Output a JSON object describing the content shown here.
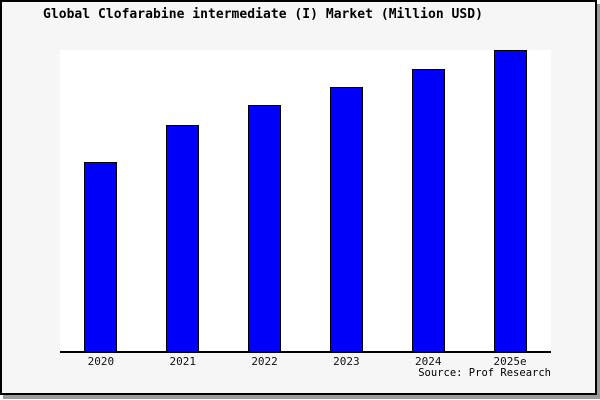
{
  "figure": {
    "background_color": "#f6f6f6",
    "border_color": "#000000",
    "shadow_color": "#9b9b9b"
  },
  "chart_data": {
    "type": "bar",
    "title": "Global Clofarabine intermediate (I) Market (Million USD)",
    "categories": [
      "2020",
      "2021",
      "2022",
      "2023",
      "2024",
      "2025e"
    ],
    "values": [
      62.8,
      75.1,
      81.6,
      87.7,
      93.7,
      100
    ],
    "values_note": "Relative bar heights as % of tallest (2025e) bar; chart shows no y-axis scale or data labels",
    "ylim": [
      0,
      100
    ],
    "xlabel": "",
    "ylabel": "",
    "grid": false,
    "legend": false,
    "bar_color": "#0000fa",
    "bar_border_color": "#000000",
    "plot_background": "#ffffff",
    "axis_color": "#000000",
    "text_color": "#000000",
    "source": "Source: Prof Research"
  }
}
